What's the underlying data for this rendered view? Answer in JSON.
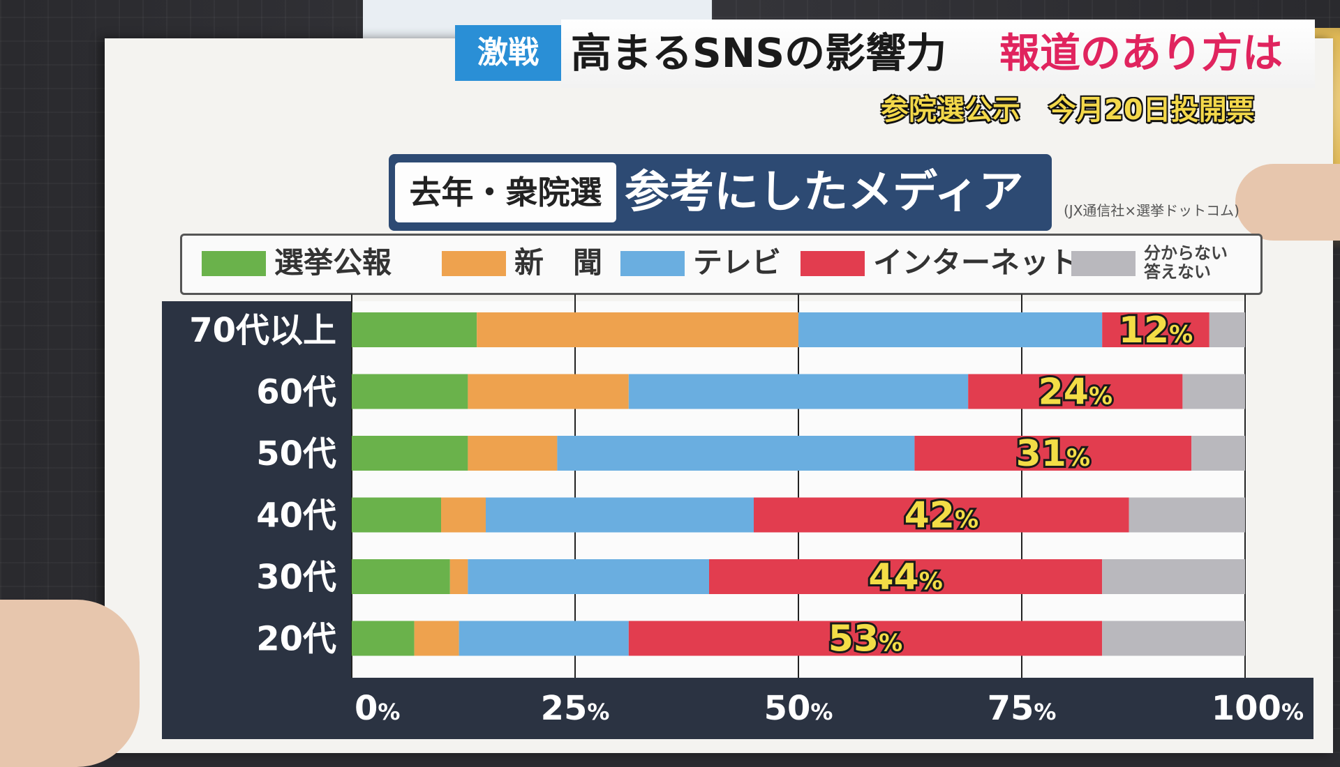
{
  "headline": {
    "topic_badge": "激戦",
    "title_main": "高まるSNSの影響力",
    "title_accent": "報道のあり方は",
    "sub_caption": "参院選公示　今月20日投開票"
  },
  "colors": {
    "badge": "#2a8fd6",
    "accent": "#e0245e",
    "caption": "#f3d84a",
    "title_box": "#2d4a73",
    "axis_panel": "#2b3342"
  },
  "chart_data": {
    "type": "bar",
    "orientation": "horizontal",
    "stacked": true,
    "title_tag": "去年・衆院選",
    "title": "参考にしたメディア",
    "source": "(JX通信社×選挙ドットコム)",
    "categories": [
      "70代以上",
      "60代",
      "50代",
      "40代",
      "30代",
      "20代"
    ],
    "series": [
      {
        "name": "選挙公報",
        "color": "#6ab24b",
        "values": [
          14,
          13,
          13,
          10,
          11,
          7
        ]
      },
      {
        "name": "新　聞",
        "color": "#eea24e",
        "values": [
          36,
          18,
          10,
          5,
          2,
          5
        ]
      },
      {
        "name": "テレビ",
        "color": "#6aaee0",
        "values": [
          34,
          38,
          40,
          30,
          27,
          19
        ]
      },
      {
        "name": "インターネット",
        "color": "#e23d4f",
        "values": [
          12,
          24,
          31,
          42,
          44,
          53
        ]
      },
      {
        "name": "分からない\n答えない",
        "color": "#b9b8bd",
        "values": [
          4,
          7,
          6,
          13,
          16,
          16
        ]
      }
    ],
    "data_labels": [
      "12",
      "24",
      "31",
      "42",
      "44",
      "53"
    ],
    "data_label_suffix": "%",
    "x_ticks": [
      0,
      25,
      50,
      75,
      100
    ],
    "x_tick_labels": [
      "0",
      "25",
      "50",
      "75",
      "100"
    ],
    "x_tick_suffix": "%",
    "xlim": [
      0,
      100
    ],
    "grid": true,
    "legend_position": "top"
  }
}
